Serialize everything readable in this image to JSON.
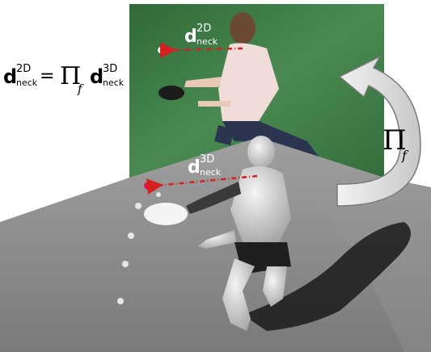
{
  "equation": {
    "lhs_symbol": "d",
    "lhs_sup": "2D",
    "lhs_sub": "neck",
    "equals": "=",
    "operator": "Π",
    "operator_sub": "f",
    "rhs_symbol": "d",
    "rhs_sup": "3D",
    "rhs_sub": "neck"
  },
  "photo_label": {
    "symbol": "d",
    "sup": "2D",
    "sub": "neck"
  },
  "scene_label": {
    "symbol": "d",
    "sup": "3D",
    "sub": "neck"
  },
  "projection_label": {
    "symbol": "Π",
    "sub": "f"
  },
  "colors": {
    "green_screen": "#3f7a46",
    "floor": "#8a8a8a",
    "vector_arrow": "#d42020",
    "ball_3d": "#e8144a",
    "arrow_fill": "#d7d7d7"
  }
}
